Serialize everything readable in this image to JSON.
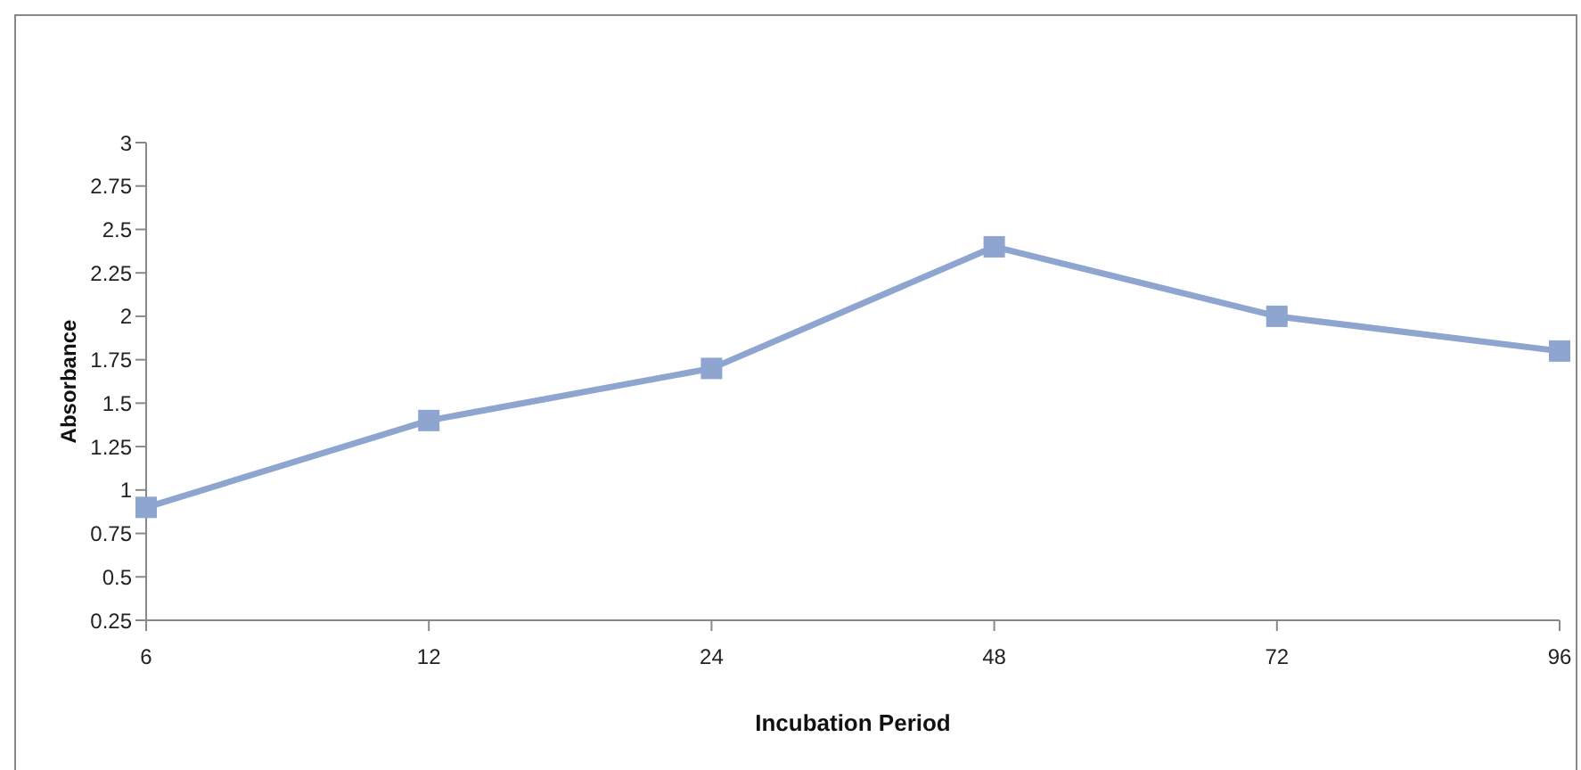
{
  "chart_data": {
    "type": "line",
    "xlabel": "Incubation Period",
    "ylabel": "Absorbance",
    "categories": [
      "6",
      "12",
      "24",
      "48",
      "72",
      "96"
    ],
    "series": [
      {
        "color": "#8ea5d0",
        "values": [
          0.9,
          1.4,
          1.7,
          2.4,
          2.0,
          1.8
        ]
      }
    ],
    "ylim": [
      0.25,
      3
    ],
    "yticks": [
      0.25,
      0.5,
      0.75,
      1,
      1.25,
      1.5,
      1.75,
      2,
      2.25,
      2.5,
      2.75,
      3
    ],
    "grid": false,
    "legend": false,
    "marker": "square",
    "line_style": "solid"
  }
}
